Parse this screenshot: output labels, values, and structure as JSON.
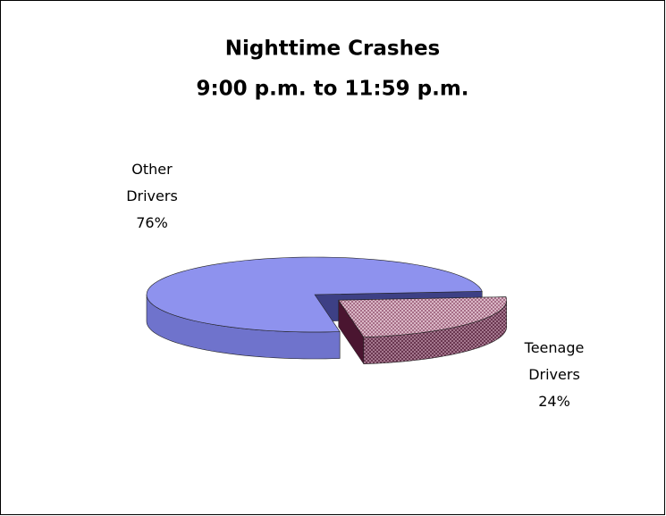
{
  "chart_data": {
    "type": "pie3d",
    "title": "Nighttime Crashes",
    "subtitle": "9:00 p.m. to 11:59 p.m.",
    "categories": [
      "Other Drivers",
      "Teenage Drivers"
    ],
    "values": [
      76,
      24
    ],
    "value_labels": [
      "76%",
      "24%"
    ],
    "colors": [
      "#8e92ee",
      "#c9a0b4"
    ]
  }
}
